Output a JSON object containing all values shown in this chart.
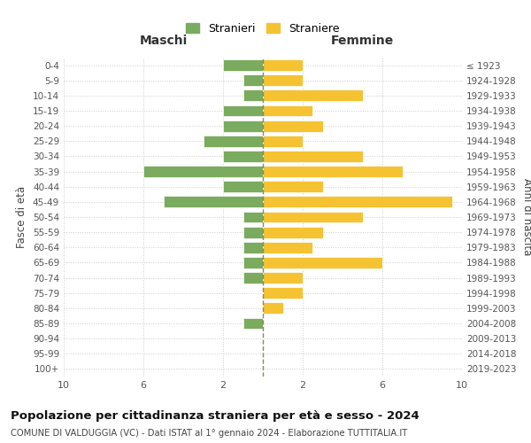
{
  "age_groups": [
    "0-4",
    "5-9",
    "10-14",
    "15-19",
    "20-24",
    "25-29",
    "30-34",
    "35-39",
    "40-44",
    "45-49",
    "50-54",
    "55-59",
    "60-64",
    "65-69",
    "70-74",
    "75-79",
    "80-84",
    "85-89",
    "90-94",
    "95-99",
    "100+"
  ],
  "birth_years": [
    "2019-2023",
    "2014-2018",
    "2009-2013",
    "2004-2008",
    "1999-2003",
    "1994-1998",
    "1989-1993",
    "1984-1988",
    "1979-1983",
    "1974-1978",
    "1969-1973",
    "1964-1968",
    "1959-1963",
    "1954-1958",
    "1949-1953",
    "1944-1948",
    "1939-1943",
    "1934-1938",
    "1929-1933",
    "1924-1928",
    "≤ 1923"
  ],
  "maschi": [
    2,
    1,
    1,
    2,
    2,
    3,
    2,
    6,
    2,
    5,
    1,
    1,
    1,
    1,
    1,
    0,
    0,
    1,
    0,
    0,
    0
  ],
  "femmine": [
    2,
    2,
    5,
    2.5,
    3,
    2,
    5,
    7,
    3,
    9.5,
    5,
    3,
    2.5,
    6,
    2,
    2,
    1,
    0,
    0,
    0,
    0
  ],
  "color_maschi": "#7aab5e",
  "color_femmine": "#f5c232",
  "bg_color": "#ffffff",
  "grid_color": "#cccccc",
  "title": "Popolazione per cittadinanza straniera per età e sesso - 2024",
  "subtitle": "COMUNE DI VALDUGGIA (VC) - Dati ISTAT al 1° gennaio 2024 - Elaborazione TUTTITALIA.IT",
  "xlabel_left": "Maschi",
  "xlabel_right": "Femmine",
  "ylabel_left": "Fasce di età",
  "ylabel_right": "Anni di nascita",
  "legend_maschi": "Stranieri",
  "legend_femmine": "Straniere",
  "xlim": 10
}
